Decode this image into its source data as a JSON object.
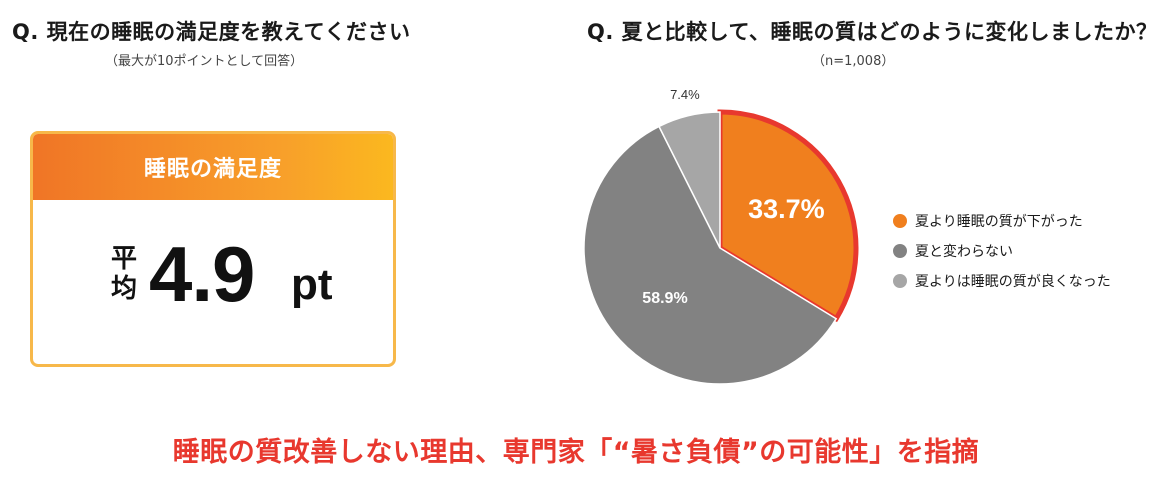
{
  "left_panel": {
    "title": "Q. 現在の睡眠の満足度を教えてください",
    "subtitle": "（最大が10ポイントとして回答）",
    "card_header": "睡眠の満足度",
    "average_label": "平均",
    "average_value": "4.9",
    "average_unit": "pt",
    "colors": {
      "header_start": "#f07526",
      "header_end": "#fbb81f",
      "border": "#f7b84a"
    }
  },
  "right_panel": {
    "title": "Q. 夏と比較して、睡眠の質はどのように変化しましたか？",
    "subtitle": "（n=1,008）"
  },
  "chart_data": {
    "type": "pie",
    "slices": [
      {
        "name": "夏より睡眠の質が下がった",
        "value": 33.7,
        "label": "33.7%",
        "color": "#f07f1e",
        "highlighted": true
      },
      {
        "name": "夏と変わらない",
        "value": 58.9,
        "label": "58.9%",
        "color": "#828282",
        "highlighted": false
      },
      {
        "name": "夏よりは睡眠の質が良くなった",
        "value": 7.4,
        "label": "7.4%",
        "color": "#a6a6a6",
        "highlighted": false
      }
    ],
    "start_angle": "12 o'clock",
    "direction": "clockwise",
    "legend_position": "right",
    "highlight_color": "#e8382e"
  },
  "footer": {
    "text": "睡眠の質改善しない理由、専門家「“暑さ負債”の可能性」を指摘"
  }
}
